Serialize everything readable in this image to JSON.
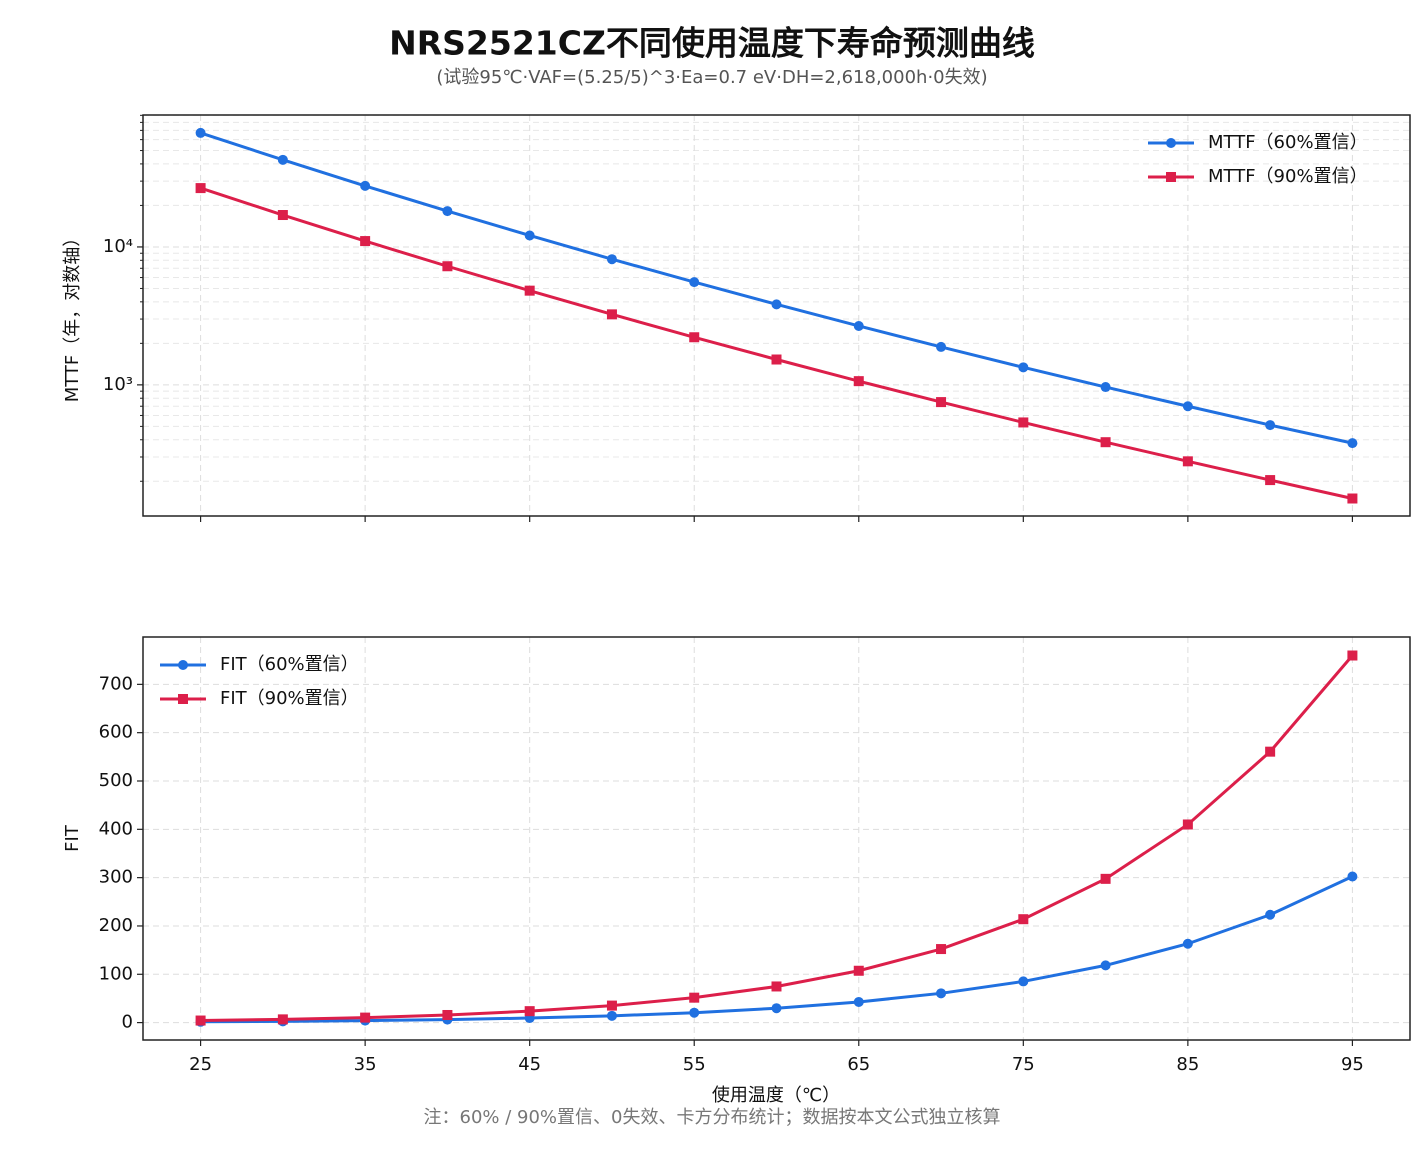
{
  "chart_data": [
    {
      "type": "line",
      "title": "NRS2521CZ不同使用温度下寿命预测曲线",
      "subtitle": "(试验95℃·VAF=(5.25/5)^3·Ea=0.7 eV·DH=2,618,000h·0失效)",
      "ylabel": "MTTF（年，对数轴）",
      "x": [
        25,
        30,
        35,
        40,
        45,
        50,
        55,
        60,
        65,
        70,
        75,
        80,
        85,
        90,
        95
      ],
      "series": [
        {
          "name": "MTTF（60%置信）",
          "color": "#2070e0",
          "marker": "circle",
          "values": [
            67100,
            42810,
            27710,
            18200,
            12110,
            8150,
            5560,
            3835,
            2673,
            1884,
            1340,
            964,
            700,
            511,
            378
          ]
        },
        {
          "name": "MTTF（90%置信）",
          "color": "#dc1f4a",
          "marker": "square",
          "values": [
            26710,
            17040,
            11030,
            7245,
            4820,
            3245,
            2214,
            1527,
            1064,
            750,
            534,
            384,
            279,
            204,
            150
          ]
        }
      ],
      "xlim": [
        21.5,
        98.5
      ],
      "xticks": [
        25,
        35,
        45,
        55,
        65,
        75,
        85,
        95
      ],
      "xtick_labels": false,
      "ylim": [
        112,
        90500
      ],
      "log_scale": true,
      "yticks": [
        {
          "value": 1000,
          "label": "10³"
        },
        {
          "value": 10000,
          "label": "10⁴"
        }
      ],
      "yticks_minor": [
        200,
        300,
        400,
        500,
        600,
        700,
        800,
        900,
        2000,
        3000,
        4000,
        5000,
        6000,
        7000,
        8000,
        9000,
        20000,
        30000,
        40000,
        50000,
        60000,
        70000,
        80000,
        90000
      ],
      "grid": true,
      "legend_loc": "upper right"
    },
    {
      "type": "line",
      "ylabel": "FIT",
      "xlabel": "使用温度（℃）",
      "note": "注：60% / 90%置信、0失效、卡方分布统计；数据按本文公式独立核算",
      "x": [
        25,
        30,
        35,
        40,
        45,
        50,
        55,
        60,
        65,
        70,
        75,
        80,
        85,
        90,
        95
      ],
      "series": [
        {
          "name": "FIT（60%置信）",
          "color": "#2070e0",
          "marker": "circle",
          "values": [
            1.7,
            2.67,
            4.12,
            6.27,
            9.43,
            14.0,
            20.5,
            29.8,
            42.7,
            60.6,
            85.2,
            118.4,
            163.2,
            223.2,
            302.4
          ]
        },
        {
          "name": "FIT（90%置信）",
          "color": "#dc1f4a",
          "marker": "square",
          "values": [
            4.28,
            6.7,
            10.35,
            15.76,
            23.7,
            35.2,
            51.6,
            74.8,
            107.3,
            152.2,
            214,
            297.5,
            410,
            560.7,
            759.7
          ]
        }
      ],
      "xlim": [
        21.5,
        98.5
      ],
      "xticks": [
        25,
        35,
        45,
        55,
        65,
        75,
        85,
        95
      ],
      "xtick_labels": true,
      "ylim": [
        -36,
        798
      ],
      "log_scale": false,
      "yticks": [
        0,
        100,
        200,
        300,
        400,
        500,
        600,
        700
      ],
      "grid": true,
      "legend_loc": "upper left"
    }
  ]
}
